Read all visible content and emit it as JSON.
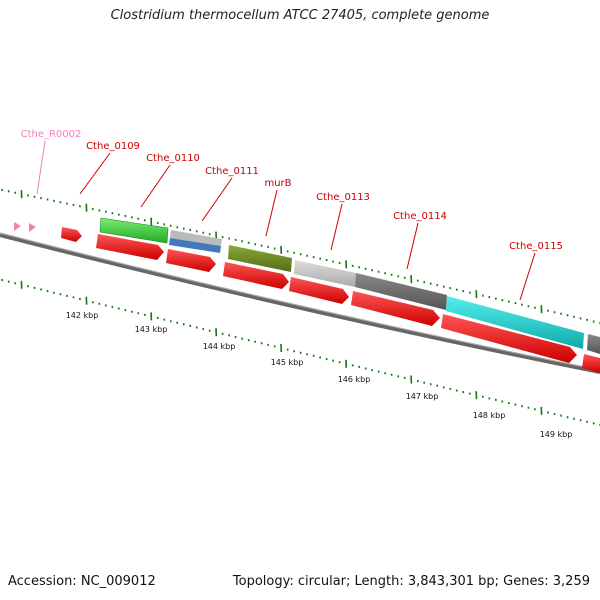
{
  "title": "Clostridium thermocellum ATCC 27405, complete genome",
  "footer": {
    "accession": "Accession: NC_009012",
    "summary": "Topology: circular; Length: 3,843,301 bp; Genes: 3,259"
  },
  "gene_labels": [
    {
      "id": "pink",
      "text": "Cthe_R0002",
      "color": "#f080b8"
    },
    {
      "id": "g0109",
      "text": "Cthe_0109",
      "color": "#cc0000"
    },
    {
      "id": "g0110",
      "text": "Cthe_0110",
      "color": "#cc0000"
    },
    {
      "id": "g0111",
      "text": "Cthe_0111",
      "color": "#cc0000"
    },
    {
      "id": "murb",
      "text": "murB",
      "color": "#cc0000"
    },
    {
      "id": "g0113",
      "text": "Cthe_0113",
      "color": "#cc0000"
    },
    {
      "id": "g0114",
      "text": "Cthe_0114",
      "color": "#cc0000"
    },
    {
      "id": "g0115",
      "text": "Cthe_0115",
      "color": "#cc0000"
    }
  ],
  "scale_labels": [
    "142 kbp",
    "143 kbp",
    "144 kbp",
    "145 kbp",
    "146 kbp",
    "147 kbp",
    "148 kbp",
    "149 kbp"
  ],
  "colors": {
    "cds_red": "#ee1111",
    "green": "#33cc33",
    "blue_grey": "#5588cc",
    "olive": "#668822",
    "light_grey": "#bbbbbb",
    "dark_grey": "#666666",
    "cyan": "#11cccc",
    "tick_green": "#117711",
    "backbone": "#777777",
    "pink": "#f080b8"
  }
}
